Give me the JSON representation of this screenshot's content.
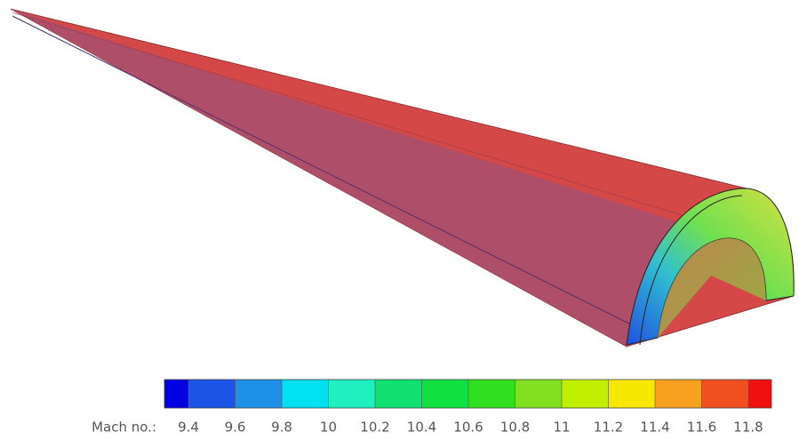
{
  "colorbar": {
    "label": "Mach no.:",
    "ticks": [
      9.4,
      9.6,
      9.8,
      10,
      10.2,
      10.4,
      10.6,
      10.8,
      11,
      11.2,
      11.4,
      11.6,
      11.8
    ],
    "colors": [
      "#0000e0",
      "#1a55e8",
      "#1e90e8",
      "#00e0f0",
      "#20f0c0",
      "#10e070",
      "#10e040",
      "#30e020",
      "#80e020",
      "#c0f000",
      "#f8e800",
      "#f8a020",
      "#f05020",
      "#f01010"
    ]
  }
}
